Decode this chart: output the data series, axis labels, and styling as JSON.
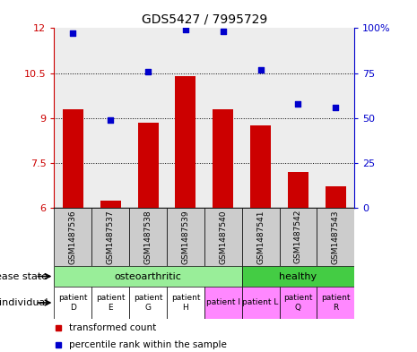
{
  "title": "GDS5427 / 7995729",
  "samples": [
    "GSM1487536",
    "GSM1487537",
    "GSM1487538",
    "GSM1487539",
    "GSM1487540",
    "GSM1487541",
    "GSM1487542",
    "GSM1487543"
  ],
  "transformed_count": [
    9.3,
    6.25,
    8.85,
    10.4,
    9.3,
    8.75,
    7.2,
    6.7
  ],
  "percentile_rank": [
    97,
    49,
    76,
    99,
    98,
    77,
    58,
    56
  ],
  "ylim_left": [
    6,
    12
  ],
  "ylim_right": [
    0,
    100
  ],
  "yticks_left": [
    6,
    7.5,
    9,
    10.5,
    12
  ],
  "yticks_right": [
    0,
    25,
    50,
    75,
    100
  ],
  "ytick_labels_right": [
    "0",
    "25",
    "50",
    "75",
    "100%"
  ],
  "bar_color": "#cc0000",
  "dot_color": "#0000cc",
  "bar_bottom": 6,
  "sample_bg_color": "#cccccc",
  "osteo_color": "#99ee99",
  "healthy_color": "#44cc44",
  "ind_colors": [
    "#ffffff",
    "#ffffff",
    "#ffffff",
    "#ffffff",
    "#ff88ff",
    "#ff88ff",
    "#ff88ff",
    "#ff88ff"
  ],
  "ind_labels": [
    "patient\nD",
    "patient\nE",
    "patient\nG",
    "patient\nH",
    "patient I",
    "patient L",
    "patient\nQ",
    "patient\nR"
  ],
  "legend_items": [
    {
      "color": "#cc0000",
      "label": "transformed count"
    },
    {
      "color": "#0000cc",
      "label": "percentile rank within the sample"
    }
  ]
}
